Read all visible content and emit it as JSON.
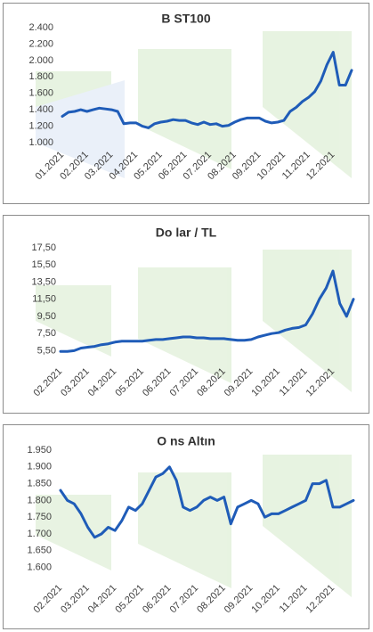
{
  "chart_data": [
    {
      "type": "line",
      "title": "B ST100",
      "color": "#1f5cb8",
      "categories": [
        "01.2021",
        null,
        null,
        null,
        "02.2021",
        null,
        null,
        null,
        "03.2021",
        null,
        null,
        null,
        "04.2021",
        null,
        null,
        null,
        "05.2021",
        null,
        null,
        null,
        "06.2021",
        null,
        null,
        null,
        "07.2021",
        null,
        null,
        null,
        "08.2021",
        null,
        null,
        null,
        "09.2021",
        null,
        null,
        null,
        "10.2021",
        null,
        null,
        null,
        "11.2021",
        null,
        null,
        null,
        "12.2021",
        null,
        null,
        null
      ],
      "values": [
        1320,
        1370,
        1380,
        1400,
        1380,
        1400,
        1420,
        1410,
        1400,
        1380,
        1230,
        1240,
        1240,
        1200,
        1180,
        1230,
        1250,
        1260,
        1280,
        1270,
        1270,
        1240,
        1220,
        1250,
        1220,
        1230,
        1200,
        1210,
        1250,
        1280,
        1300,
        1300,
        1300,
        1260,
        1240,
        1250,
        1270,
        1380,
        1430,
        1500,
        1550,
        1620,
        1750,
        1950,
        2100,
        1700,
        1700,
        1880
      ],
      "ylim": [
        1000,
        2400
      ],
      "yticks": [
        {
          "value": 1000,
          "label": "1.000"
        },
        {
          "value": 1200,
          "label": "1.200"
        },
        {
          "value": 1400,
          "label": "1.400"
        },
        {
          "value": 1600,
          "label": "1.600"
        },
        {
          "value": 1800,
          "label": "1.800"
        },
        {
          "value": 2000,
          "label": "2.000"
        },
        {
          "value": 2200,
          "label": "2.200"
        },
        {
          "value": 2400,
          "label": "2.400"
        }
      ]
    },
    {
      "type": "line",
      "title": "Do lar / TL",
      "color": "#1f5cb8",
      "categories": [
        "02.2021",
        null,
        null,
        null,
        "03.2021",
        null,
        null,
        null,
        "04.2021",
        null,
        null,
        null,
        "05.2021",
        null,
        null,
        null,
        "06.2021",
        null,
        null,
        null,
        "07.2021",
        null,
        null,
        null,
        "08.2021",
        null,
        null,
        null,
        "09.2021",
        null,
        null,
        null,
        "10.2021",
        null,
        null,
        null,
        "11.2021",
        null,
        null,
        null,
        "12.2021",
        null,
        null,
        null
      ],
      "values": [
        5.4,
        5.4,
        5.5,
        5.8,
        5.9,
        6.0,
        6.2,
        6.3,
        6.5,
        6.6,
        6.6,
        6.6,
        6.6,
        6.7,
        6.8,
        6.8,
        6.9,
        7.0,
        7.1,
        7.1,
        7.0,
        7.0,
        6.9,
        6.9,
        6.9,
        6.8,
        6.7,
        6.7,
        6.8,
        7.1,
        7.3,
        7.5,
        7.6,
        7.9,
        8.1,
        8.2,
        8.5,
        9.8,
        11.5,
        12.8,
        14.8,
        11.0,
        9.5,
        11.5
      ],
      "ylim": [
        4.5,
        17.5
      ],
      "yticks": [
        {
          "value": 5.5,
          "label": "5,50"
        },
        {
          "value": 7.5,
          "label": "7,50"
        },
        {
          "value": 9.5,
          "label": "9,50"
        },
        {
          "value": 11.5,
          "label": "11,50"
        },
        {
          "value": 13.5,
          "label": "13,50"
        },
        {
          "value": 15.5,
          "label": "15,50"
        },
        {
          "value": 17.5,
          "label": "17,50"
        }
      ]
    },
    {
      "type": "line",
      "title": "O ns Altın",
      "color": "#1f5cb8",
      "categories": [
        "02.2021",
        null,
        null,
        null,
        "03.2021",
        null,
        null,
        null,
        "04.2021",
        null,
        null,
        null,
        "05.2021",
        null,
        null,
        null,
        "06.2021",
        null,
        null,
        null,
        "07.2021",
        null,
        null,
        null,
        "08.2021",
        null,
        null,
        null,
        "09.2021",
        null,
        null,
        null,
        "10.2021",
        null,
        null,
        null,
        "11.2021",
        null,
        null,
        null,
        "12.2021",
        null,
        null,
        null
      ],
      "values": [
        1830,
        1800,
        1790,
        1760,
        1720,
        1690,
        1700,
        1720,
        1710,
        1740,
        1780,
        1770,
        1790,
        1830,
        1870,
        1880,
        1900,
        1860,
        1780,
        1770,
        1780,
        1800,
        1810,
        1800,
        1810,
        1730,
        1780,
        1790,
        1800,
        1790,
        1750,
        1760,
        1760,
        1770,
        1780,
        1790,
        1800,
        1850,
        1850,
        1860,
        1780,
        1780,
        1790,
        1800
      ],
      "ylim": [
        1575,
        1950
      ],
      "yticks": [
        {
          "value": 1600,
          "label": "1.600"
        },
        {
          "value": 1650,
          "label": "1.650"
        },
        {
          "value": 1700,
          "label": "1.700"
        },
        {
          "value": 1750,
          "label": "1.750"
        },
        {
          "value": 1800,
          "label": "1.800"
        },
        {
          "value": 1850,
          "label": "1.850"
        },
        {
          "value": 1900,
          "label": "1.900"
        },
        {
          "value": 1950,
          "label": "1.950"
        }
      ]
    }
  ]
}
